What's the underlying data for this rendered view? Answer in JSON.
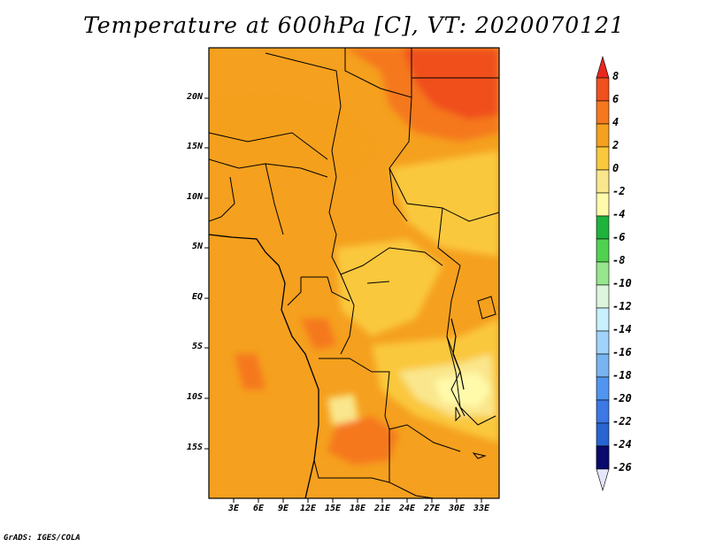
{
  "title": "Temperature at 600hPa [C], VT: 2020070121",
  "credit": "GrADS: IGES/COLA",
  "map": {
    "lat_labels": [
      "20N",
      "15N",
      "10N",
      "5N",
      "EQ",
      "5S",
      "10S",
      "15S"
    ],
    "lon_labels": [
      "3E",
      "6E",
      "9E",
      "12E",
      "15E",
      "18E",
      "21E",
      "24E",
      "27E",
      "30E",
      "33E"
    ]
  },
  "colorbar": {
    "labels": [
      "8",
      "6",
      "4",
      "2",
      "0",
      "-2",
      "-4",
      "-6",
      "-8",
      "-10",
      "-12",
      "-14",
      "-16",
      "-18",
      "-20",
      "-22",
      "-24",
      "-26"
    ],
    "colors": [
      "#f0501e",
      "#f5781e",
      "#f5a01e",
      "#fac83c",
      "#fae68c",
      "#fffaaa",
      "#1eb43c",
      "#50d250",
      "#96e68c",
      "#dcf5dc",
      "#c8f0ff",
      "#a0d2fa",
      "#78b4f0",
      "#5096f0",
      "#3c78e6",
      "#2864d2",
      "#1446b4",
      "#0a0a6e"
    ],
    "top_arrow_color": "#e6281e",
    "bottom_arrow_color": "#e6e6fa"
  }
}
